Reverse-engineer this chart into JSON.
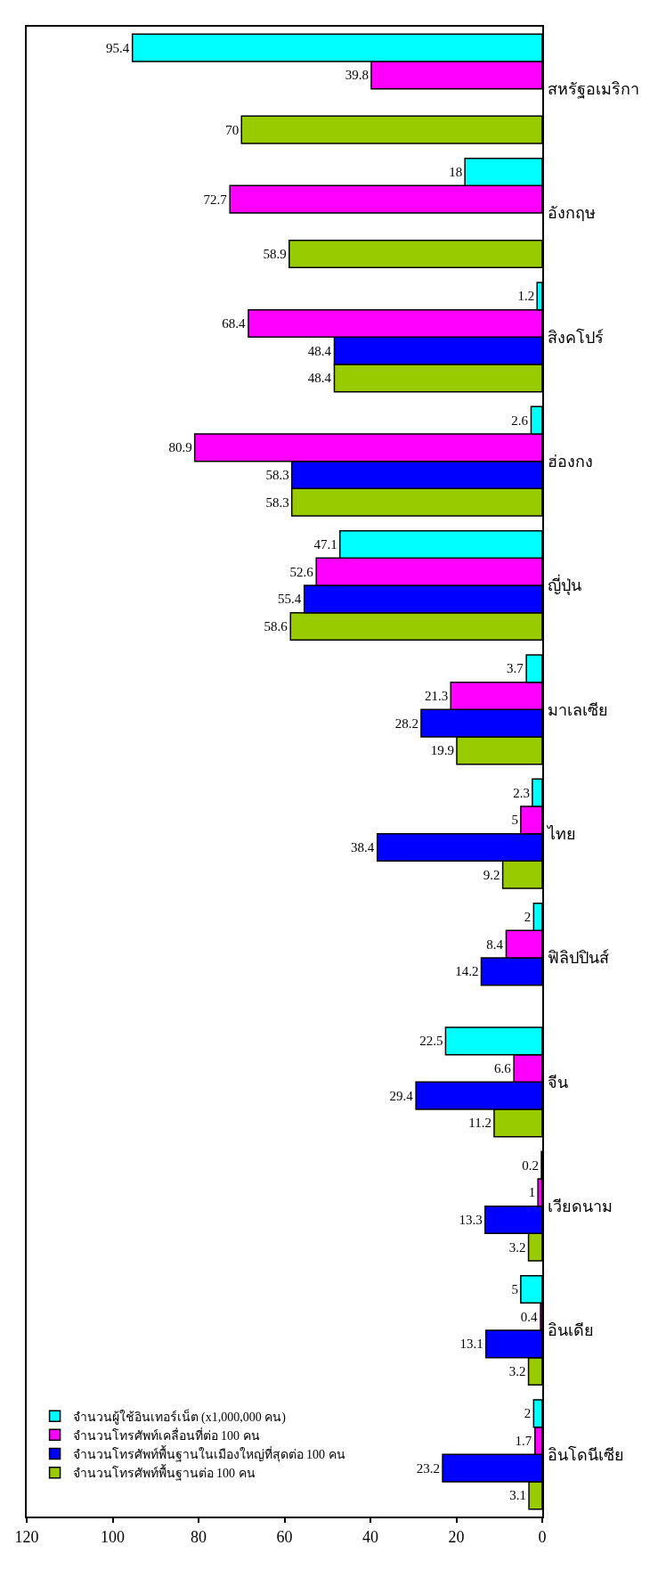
{
  "chart_data": {
    "type": "bar",
    "orientation": "horizontal",
    "categories": [
      "สหรัฐอเมริกา",
      "อังกฤษ",
      "สิงคโปร์",
      "ฮ่องกง",
      "ญี่ปุ่น",
      "มาเลเซีย",
      "ไทย",
      "ฟิลิปปินส์",
      "จีน",
      "เวียดนาม",
      "อินเดีย",
      "อินโดนีเซีย"
    ],
    "series": [
      {
        "name": "จำนวนโทรศัพท์พื้นฐานต่อ 100 คน",
        "color": "#99cc00",
        "values": [
          70,
          58.9,
          48.4,
          58.3,
          58.6,
          19.9,
          9.2,
          null,
          11.2,
          3.2,
          3.2,
          3.1
        ]
      },
      {
        "name": "จำนวนโทรศัพท์พื้นฐานในเมืองใหญ่ที่สุดต่อ 100 คน",
        "color": "#0000ff",
        "values": [
          null,
          null,
          48.4,
          58.3,
          55.4,
          28.2,
          38.4,
          14.2,
          29.4,
          13.3,
          13.1,
          23.2
        ]
      },
      {
        "name": "จำนวนโทรศัพท์เคลื่อนที่ต่อ 100 คน",
        "color": "#ff00ff",
        "values": [
          39.8,
          72.7,
          68.4,
          80.9,
          52.6,
          21.3,
          5,
          8.4,
          6.6,
          1,
          0.4,
          1.7
        ]
      },
      {
        "name": "จำนวนผู้ใช้อินเทอร์เน็ต (x1,000,000 คน)",
        "color": "#00ffff",
        "values": [
          95.4,
          18,
          1.2,
          2.6,
          47.1,
          3.7,
          2.3,
          2,
          22.5,
          0.2,
          5,
          2
        ]
      }
    ],
    "xlim": [
      120,
      0
    ],
    "xticks": [
      0,
      20,
      40,
      60,
      80,
      100,
      120
    ],
    "data_labels": true,
    "legend": "bottom left"
  }
}
